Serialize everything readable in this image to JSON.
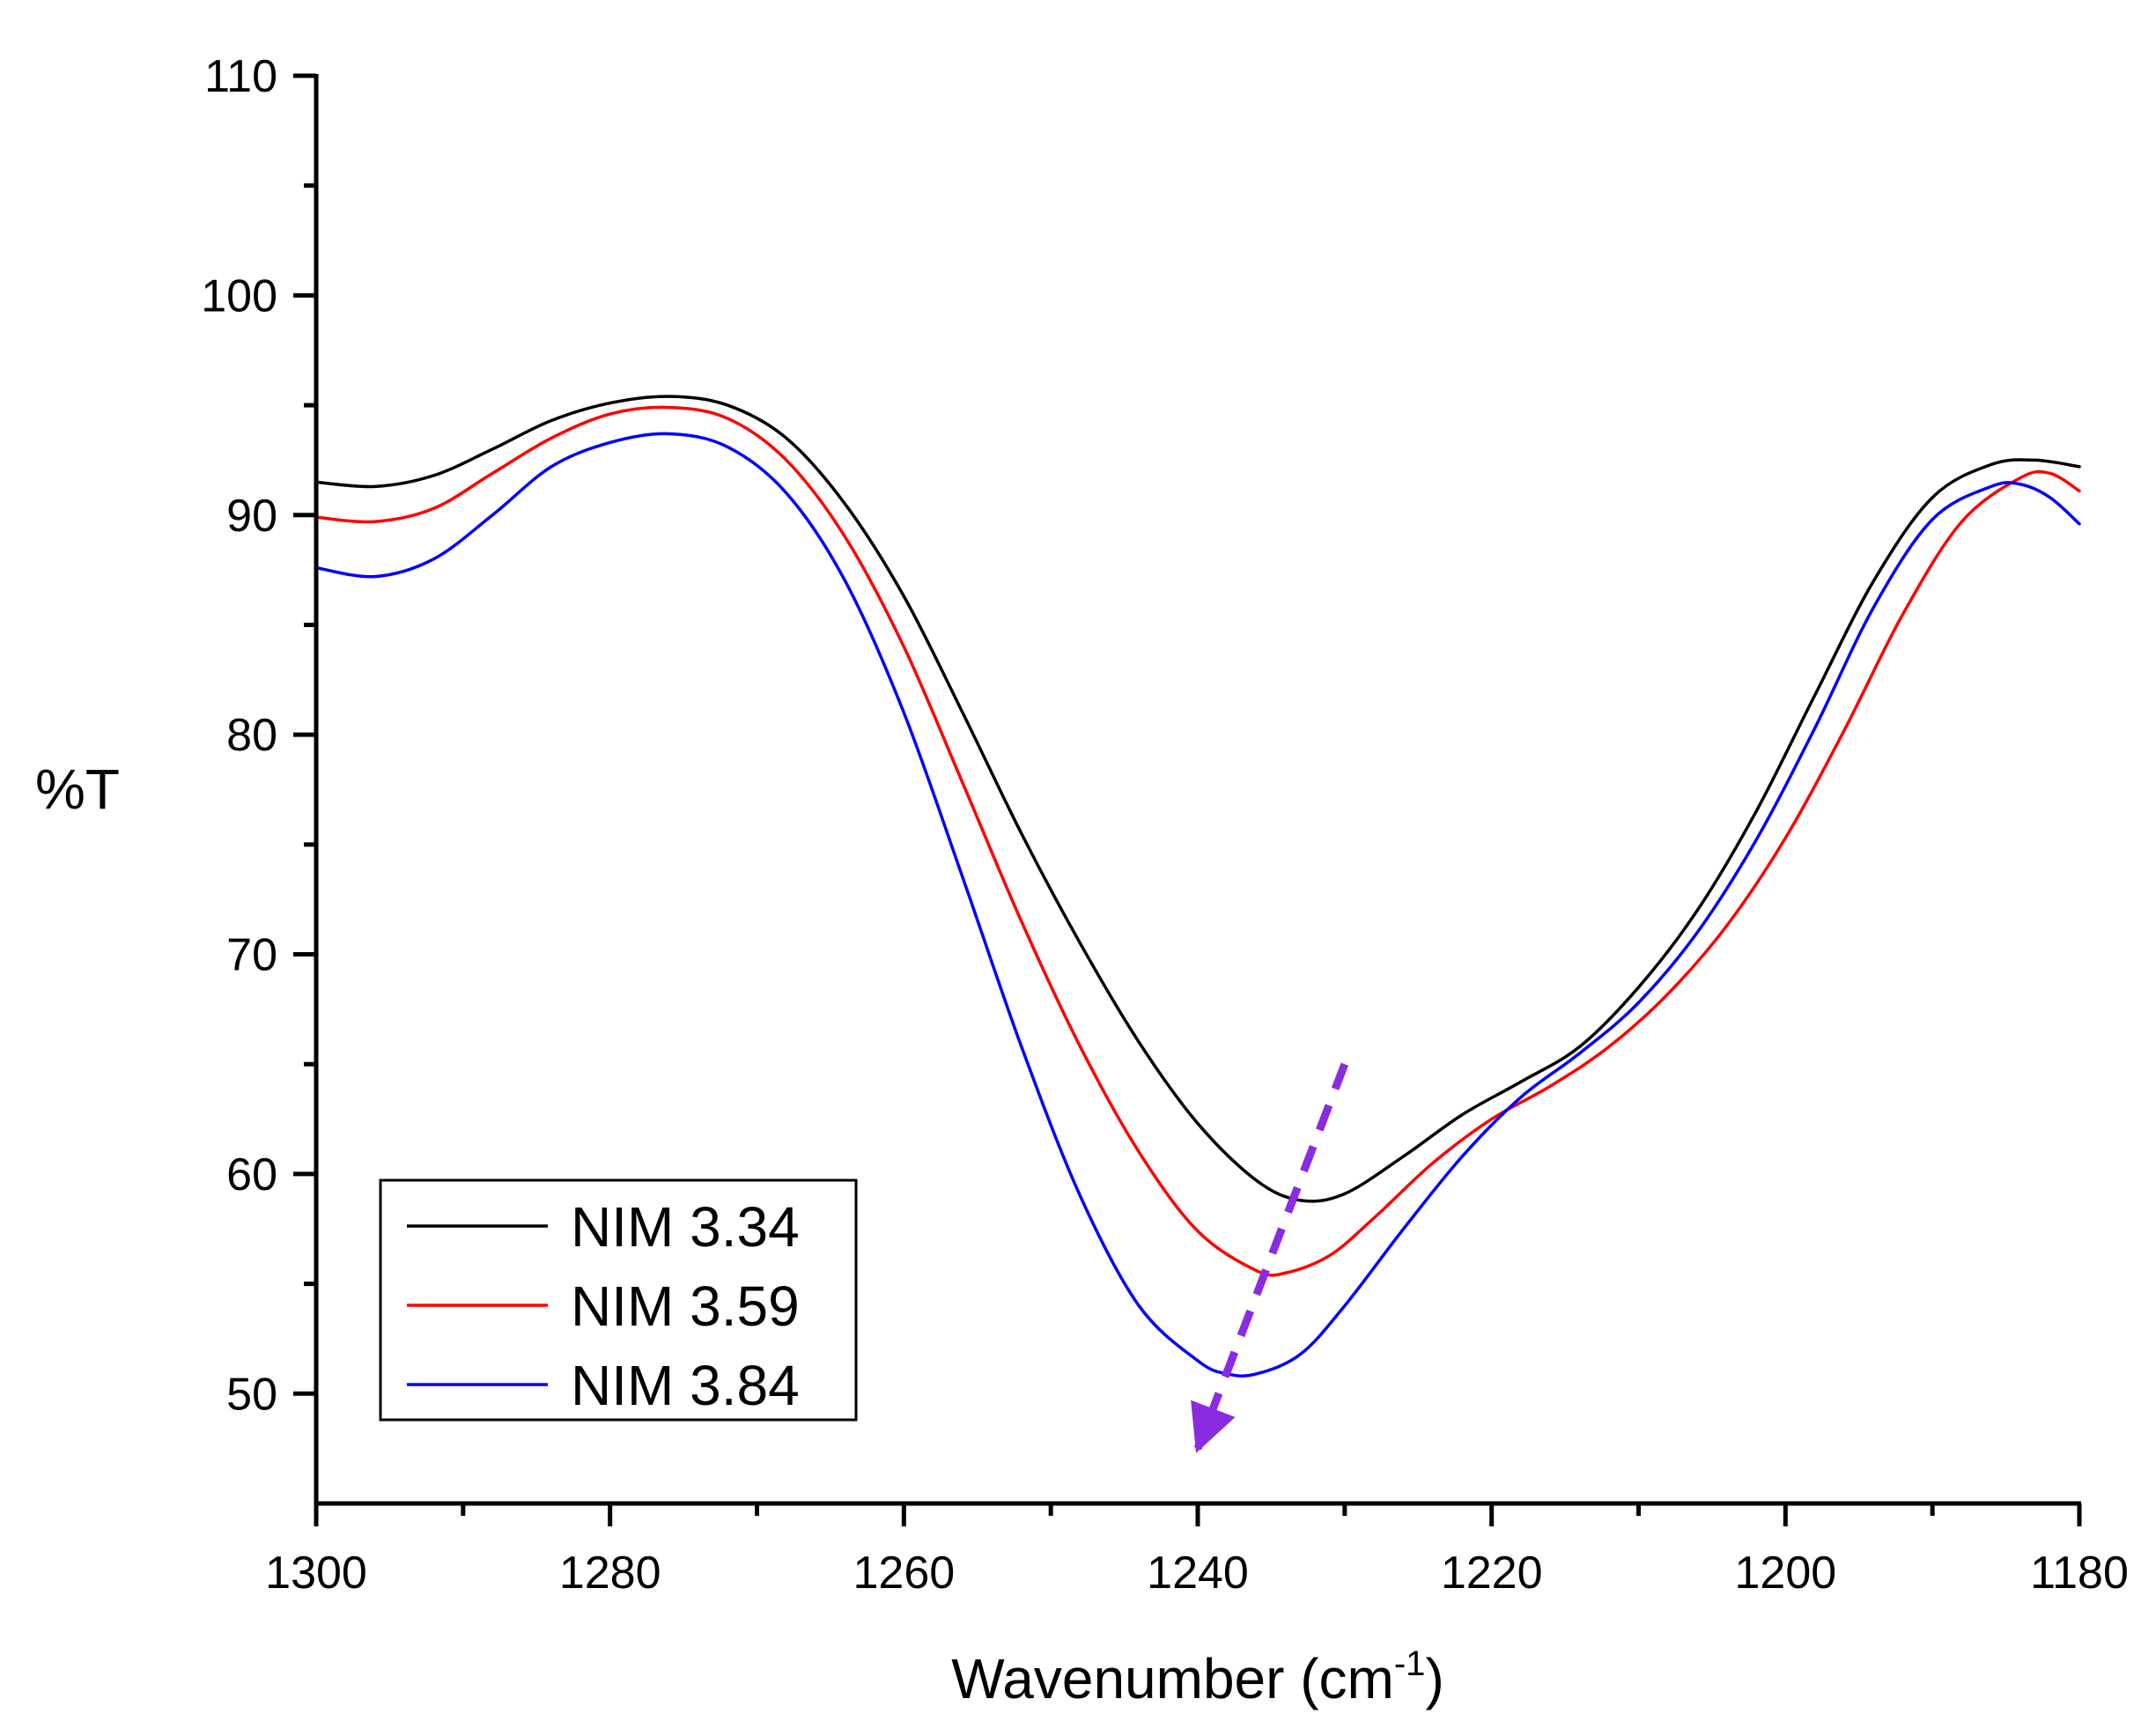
{
  "chart_data": {
    "type": "line",
    "xlabel": "Wavenumber (cm",
    "xlabel_superscript": "-1",
    "xlabel_suffix": ")",
    "ylabel": "%T",
    "xlim": [
      1300,
      1180
    ],
    "x_reversed": true,
    "ylim": [
      45,
      110
    ],
    "x_major_ticks": [
      1300,
      1280,
      1260,
      1240,
      1220,
      1200,
      1180
    ],
    "x_tick_labels": [
      "1300",
      "1280",
      "1260",
      "1240",
      "1220",
      "1200",
      "1180"
    ],
    "x_minor_ticks": [
      1290,
      1270,
      1250,
      1230,
      1210,
      1190
    ],
    "y_major_ticks": [
      50,
      60,
      70,
      80,
      90,
      100,
      110
    ],
    "y_tick_labels": [
      "50",
      "60",
      "70",
      "80",
      "90",
      "100",
      "110"
    ],
    "y_minor_ticks": [
      55,
      65,
      75,
      85,
      95,
      105
    ],
    "grid": false,
    "legend": {
      "position": "bottom-left",
      "border": true
    },
    "series": [
      {
        "name": "NIM 3.34",
        "color": "#000000",
        "x": [
          1300,
          1296,
          1292,
          1288,
          1284,
          1280,
          1276,
          1272,
          1268,
          1264,
          1260,
          1256,
          1252,
          1248,
          1244,
          1240,
          1236,
          1233,
          1230,
          1226,
          1222,
          1218,
          1214,
          1210,
          1206,
          1202,
          1198,
          1194,
          1190,
          1186,
          1183,
          1180
        ],
        "y": [
          91.5,
          91.3,
          91.8,
          93.0,
          94.3,
          95.1,
          95.4,
          95.0,
          93.5,
          90.5,
          86.3,
          81.0,
          75.5,
          70.5,
          66.0,
          62.3,
          59.7,
          58.8,
          59.1,
          60.8,
          62.7,
          64.2,
          65.8,
          68.5,
          72.0,
          76.5,
          81.8,
          87.0,
          90.8,
          92.3,
          92.5,
          92.2
        ]
      },
      {
        "name": "NIM 3.59",
        "color": "#ff0000",
        "x": [
          1300,
          1296,
          1292,
          1288,
          1284,
          1280,
          1276,
          1272,
          1268,
          1264,
          1260,
          1256,
          1252,
          1248,
          1244,
          1240,
          1236,
          1234,
          1231,
          1228,
          1224,
          1220,
          1216,
          1212,
          1208,
          1204,
          1200,
          1196,
          1192,
          1188,
          1184,
          1182,
          1180
        ],
        "y": [
          89.9,
          89.7,
          90.3,
          91.9,
          93.5,
          94.6,
          94.9,
          94.4,
          92.5,
          89.0,
          84.0,
          77.8,
          71.5,
          65.8,
          61.0,
          57.4,
          55.6,
          55.5,
          56.3,
          58.0,
          60.5,
          62.5,
          64.0,
          65.8,
          68.2,
          71.3,
          75.3,
          80.2,
          85.5,
          89.7,
          91.7,
          91.9,
          91.1
        ]
      },
      {
        "name": "NIM 3.84",
        "color": "#0000ff",
        "x": [
          1300,
          1296,
          1292,
          1288,
          1284,
          1280,
          1276,
          1272,
          1268,
          1264,
          1260,
          1256,
          1252,
          1248,
          1244,
          1240,
          1238,
          1236,
          1233,
          1230,
          1226,
          1222,
          1218,
          1214,
          1210,
          1206,
          1202,
          1198,
          1194,
          1190,
          1186,
          1184,
          1182,
          1180
        ],
        "y": [
          87.6,
          87.2,
          88.0,
          90.0,
          92.2,
          93.3,
          93.7,
          93.1,
          91.0,
          87.0,
          81.0,
          73.5,
          65.8,
          59.0,
          54.0,
          51.5,
          50.9,
          50.9,
          51.8,
          54.0,
          57.5,
          60.8,
          63.5,
          65.5,
          67.8,
          71.0,
          75.2,
          80.3,
          85.8,
          89.8,
          91.3,
          91.4,
          90.8,
          89.6
        ]
      }
    ],
    "annotation": {
      "type": "dashed-arrow",
      "color": "#8a2be2",
      "from": [
        1230,
        65
      ],
      "to": [
        1240,
        47.5
      ]
    }
  }
}
